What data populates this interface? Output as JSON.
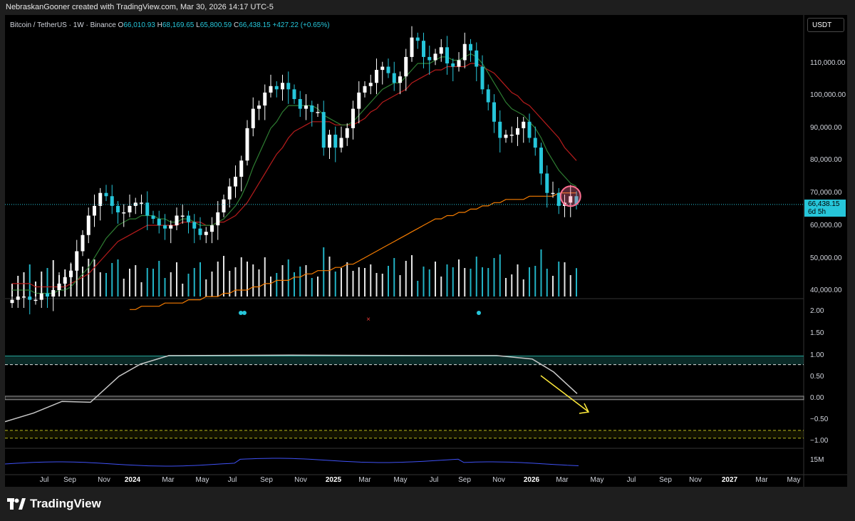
{
  "header": {
    "attribution": "NebraskanGooner created with TradingView.com, Mar 30, 2026 14:17 UTC-5"
  },
  "legend": {
    "symbol": "Bitcoin / TetherUS · 1W · Binance",
    "open_label": "O",
    "open": "66,010.93",
    "high_label": "H",
    "high": "68,169.65",
    "low_label": "L",
    "low": "65,800.59",
    "close_label": "C",
    "close": "66,438.15",
    "change": "+427.22 (+0.65%)"
  },
  "currency_button": "USDT",
  "last_price": {
    "price": "66,438.15",
    "countdown": "6d 5h"
  },
  "brand": "TradingView",
  "colors": {
    "up": "#ffffff",
    "down": "#26c6da",
    "ema_fast": "#2e7d32",
    "ema_slow": "#b71c1c",
    "ma_long": "#f57c00",
    "oscillator": "#c8c8c8",
    "band_upper": "#26a69a",
    "band_lower": "#c0c020",
    "rsi": "#3f51f5",
    "arrow": "#ffeb3b",
    "circle": "#ff6f91"
  },
  "chart_data": {
    "type": "candlestick",
    "timeframe": "1W",
    "price_axis": {
      "ticks": [
        "110,000.00",
        "100,000.00",
        "90,000.00",
        "80,000.00",
        "70,000.00",
        "60,000.00",
        "50,000.00",
        "40,000.00"
      ]
    },
    "oscillator_axis": {
      "ticks": [
        "2.00",
        "1.50",
        "1.00",
        "0.50",
        "0.00",
        "−0.50",
        "−1.00"
      ]
    },
    "volume_axis_label": "15M",
    "time_axis": [
      {
        "label": "Jul",
        "bold": false
      },
      {
        "label": "Sep",
        "bold": false
      },
      {
        "label": "Nov",
        "bold": false
      },
      {
        "label": "2024",
        "bold": true
      },
      {
        "label": "Mar",
        "bold": false
      },
      {
        "label": "May",
        "bold": false
      },
      {
        "label": "Jul",
        "bold": false
      },
      {
        "label": "Sep",
        "bold": false
      },
      {
        "label": "Nov",
        "bold": false
      },
      {
        "label": "2025",
        "bold": true
      },
      {
        "label": "Mar",
        "bold": false
      },
      {
        "label": "May",
        "bold": false
      },
      {
        "label": "Jul",
        "bold": false
      },
      {
        "label": "Sep",
        "bold": false
      },
      {
        "label": "Nov",
        "bold": false
      },
      {
        "label": "2026",
        "bold": true
      },
      {
        "label": "Mar",
        "bold": false
      },
      {
        "label": "May",
        "bold": false
      },
      {
        "label": "Jul",
        "bold": false
      },
      {
        "label": "Sep",
        "bold": false
      },
      {
        "label": "Nov",
        "bold": false
      },
      {
        "label": "2027",
        "bold": true
      },
      {
        "label": "Mar",
        "bold": false
      },
      {
        "label": "May",
        "bold": false
      }
    ],
    "close_series_k": [
      37,
      38,
      38,
      37,
      37,
      39,
      38,
      40,
      42,
      44,
      46,
      52,
      57,
      63,
      66,
      70,
      69,
      66,
      64,
      64,
      66,
      67,
      67,
      63,
      62,
      60,
      59,
      60,
      63,
      63,
      61,
      59,
      57,
      58,
      60,
      64,
      68,
      72,
      75,
      80,
      90,
      96,
      97,
      101,
      103,
      102,
      104,
      102,
      99,
      96,
      97,
      95,
      95,
      84,
      88,
      84,
      87,
      90,
      96,
      101,
      103,
      104,
      108,
      109,
      107,
      104,
      106,
      112,
      118,
      117,
      112,
      111,
      113,
      115,
      110,
      109,
      111,
      116,
      114,
      109,
      102,
      98,
      92,
      87,
      88,
      88,
      90,
      92,
      87,
      84,
      76,
      70,
      70,
      66,
      67,
      69,
      66.4
    ],
    "ema_fast_k": [
      40,
      40,
      40,
      40,
      39,
      39,
      39,
      39,
      40,
      40,
      41,
      43,
      45,
      47,
      50,
      53,
      56,
      58,
      60,
      61,
      62,
      62,
      63,
      63,
      63,
      62,
      62,
      61,
      61,
      62,
      62,
      61,
      60,
      60,
      60,
      61,
      62,
      64,
      66,
      69,
      73,
      78,
      82,
      86,
      90,
      92,
      95,
      97,
      97,
      97,
      97,
      97,
      96,
      94,
      93,
      92,
      91,
      91,
      92,
      94,
      96,
      98,
      100,
      102,
      103,
      104,
      104,
      106,
      108,
      110,
      110,
      110,
      111,
      112,
      112,
      111,
      111,
      112,
      113,
      112,
      110,
      107,
      104,
      101,
      98,
      96,
      95,
      94,
      92,
      90,
      87,
      83,
      80,
      77,
      75,
      73,
      72
    ],
    "ema_slow_k": [
      42,
      42,
      42,
      42,
      41,
      41,
      41,
      41,
      41,
      41,
      42,
      43,
      44,
      45,
      47,
      49,
      51,
      53,
      55,
      56,
      57,
      58,
      59,
      60,
      60,
      60,
      60,
      60,
      60,
      61,
      61,
      61,
      61,
      60,
      60,
      61,
      61,
      62,
      63,
      65,
      67,
      70,
      73,
      76,
      79,
      82,
      84,
      87,
      89,
      90,
      91,
      92,
      92,
      92,
      92,
      91,
      91,
      91,
      91,
      92,
      93,
      95,
      96,
      98,
      99,
      100,
      101,
      102,
      104,
      105,
      106,
      107,
      108,
      108,
      109,
      109,
      109,
      109,
      110,
      110,
      109,
      108,
      107,
      105,
      103,
      101,
      100,
      98,
      97,
      95,
      93,
      91,
      89,
      87,
      84,
      82,
      80
    ],
    "ma_long_k": [
      34,
      34,
      35,
      35,
      35,
      35,
      36,
      36,
      36,
      36,
      37,
      37,
      37,
      38,
      38,
      38,
      39,
      39,
      40,
      40,
      40,
      41,
      41,
      42,
      42,
      43,
      43,
      43,
      44,
      44,
      45,
      45,
      46,
      46,
      46,
      47,
      47,
      48,
      48,
      49,
      50,
      51,
      52,
      53,
      54,
      55,
      56,
      57,
      58,
      59,
      60,
      61,
      62,
      62,
      63,
      63,
      64,
      64,
      65,
      65,
      66,
      66,
      67,
      67,
      68,
      68,
      68,
      68,
      69,
      69,
      69,
      69,
      69,
      70,
      70,
      70,
      70
    ]
  }
}
